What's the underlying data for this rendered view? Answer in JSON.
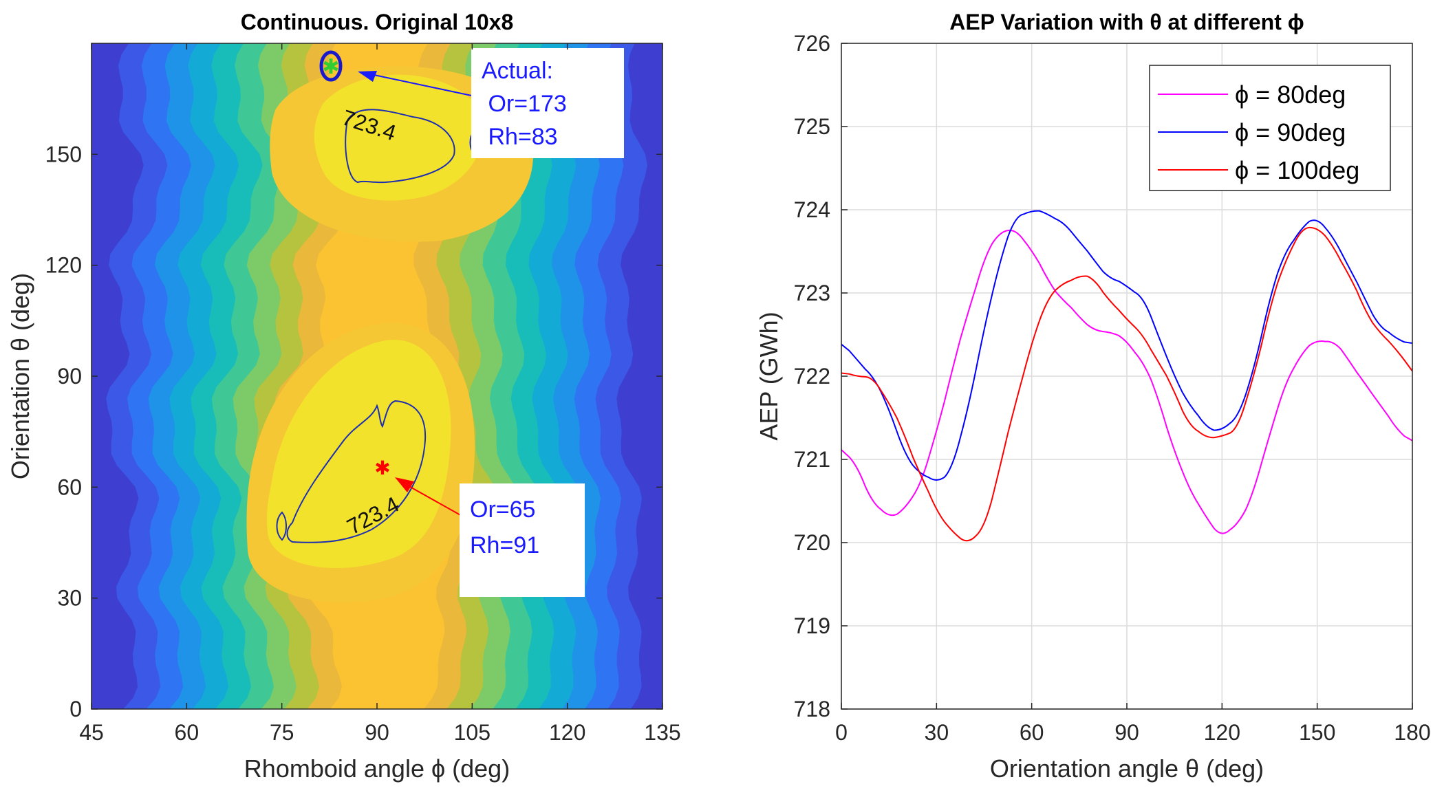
{
  "chart_data": [
    {
      "type": "contour",
      "title": "Continuous. Original 10x8",
      "xlabel": "Rhomboid angle ϕ (deg)",
      "ylabel": "Orientation θ (deg)",
      "xlim": [
        45,
        135
      ],
      "ylim": [
        0,
        180
      ],
      "xticks": [
        "45",
        "60",
        "75",
        "90",
        "105",
        "120",
        "135"
      ],
      "yticks": [
        "0",
        "30",
        "60",
        "90",
        "120",
        "150"
      ],
      "contour_level_labels": [
        "723.4",
        "723.4"
      ],
      "markers": [
        {
          "name": "actual",
          "x": 83,
          "y": 173,
          "symbol": "*",
          "color": "#33cc33"
        },
        {
          "name": "optimum",
          "x": 91,
          "y": 65,
          "symbol": "*",
          "color": "#ff0000"
        }
      ],
      "annotations": [
        {
          "lines": [
            "Actual:",
            " Or=173",
            " Rh=83"
          ]
        },
        {
          "lines": [
            "Or=65",
            "Rh=91"
          ]
        }
      ]
    },
    {
      "type": "line",
      "title": "AEP Variation with θ at different ϕ",
      "xlabel": "Orientation angle θ (deg)",
      "ylabel": "AEP (GWh)",
      "xlim": [
        0,
        180
      ],
      "ylim": [
        718,
        726
      ],
      "xticks": [
        "0",
        "30",
        "60",
        "90",
        "120",
        "150",
        "180"
      ],
      "yticks": [
        "718",
        "719",
        "720",
        "721",
        "722",
        "723",
        "724",
        "725",
        "726"
      ],
      "grid": true,
      "legend_position": "top-right",
      "x": [
        0,
        5,
        10,
        15,
        20,
        25,
        30,
        35,
        40,
        45,
        50,
        55,
        60,
        65,
        70,
        75,
        80,
        85,
        90,
        95,
        100,
        105,
        110,
        115,
        120,
        125,
        130,
        135,
        140,
        145,
        150,
        155,
        160,
        165,
        170,
        175,
        180
      ],
      "series": [
        {
          "name": "ϕ = 80deg",
          "color": "#ff00ff",
          "values": [
            721.1,
            720.9,
            720.5,
            720.3,
            720.4,
            720.7,
            721.3,
            722.1,
            722.8,
            723.4,
            723.75,
            723.75,
            723.5,
            723.2,
            722.9,
            722.7,
            722.55,
            722.5,
            722.45,
            722.2,
            721.7,
            721.1,
            720.6,
            720.3,
            720.1,
            720.2,
            720.6,
            721.3,
            721.9,
            722.3,
            722.45,
            722.4,
            722.2,
            721.9,
            721.65,
            721.4,
            721.2
          ]
        },
        {
          "name": "ϕ = 90deg",
          "color": "#0000ff",
          "values": [
            722.35,
            722.2,
            722.0,
            721.6,
            721.1,
            720.8,
            720.7,
            720.9,
            721.6,
            722.6,
            723.4,
            723.9,
            724.0,
            723.95,
            723.85,
            723.65,
            723.35,
            723.15,
            723.1,
            722.95,
            722.5,
            722.0,
            721.6,
            721.4,
            721.35,
            721.5,
            722.1,
            722.9,
            723.5,
            723.8,
            723.9,
            723.7,
            723.3,
            722.9,
            722.6,
            722.45,
            722.4
          ]
        },
        {
          "name": "ϕ = 100deg",
          "color": "#ff0000",
          "values": [
            722.05,
            722.0,
            721.95,
            721.7,
            721.3,
            720.8,
            720.4,
            720.1,
            719.97,
            720.2,
            720.9,
            721.7,
            722.4,
            722.9,
            723.15,
            723.22,
            723.15,
            722.9,
            722.65,
            722.5,
            722.2,
            721.8,
            721.4,
            721.25,
            721.25,
            721.4,
            722.0,
            722.8,
            723.4,
            723.75,
            723.8,
            723.6,
            723.2,
            722.8,
            722.5,
            722.3,
            722.1
          ]
        }
      ]
    }
  ]
}
